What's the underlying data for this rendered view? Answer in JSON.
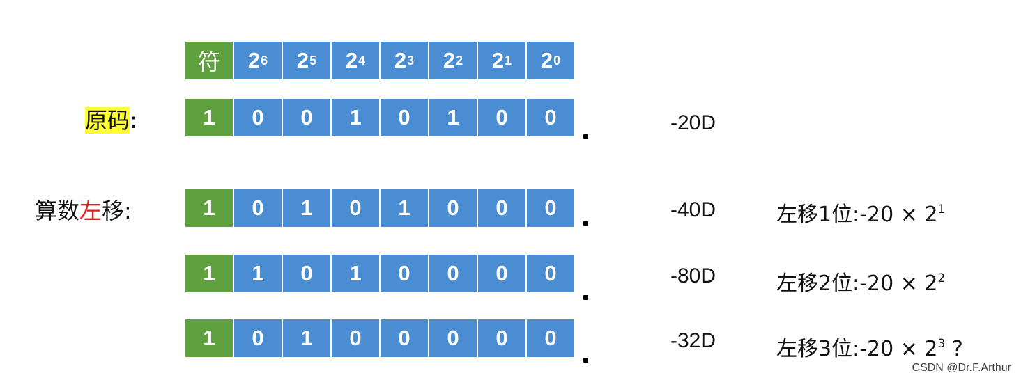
{
  "header": {
    "sign_label": "符",
    "powers": [
      {
        "base": "2",
        "exp": "6"
      },
      {
        "base": "2",
        "exp": "5"
      },
      {
        "base": "2",
        "exp": "4"
      },
      {
        "base": "2",
        "exp": "3"
      },
      {
        "base": "2",
        "exp": "2"
      },
      {
        "base": "2",
        "exp": "1"
      },
      {
        "base": "2",
        "exp": "0"
      }
    ]
  },
  "labels": {
    "original_code": "原码",
    "original_colon": ":",
    "shift_prefix": "算数",
    "shift_dir": "左",
    "shift_suffix": "移:"
  },
  "rows": [
    {
      "bits": [
        "1",
        "0",
        "0",
        "1",
        "0",
        "1",
        "0",
        "0"
      ],
      "value": "-20D",
      "note": null
    },
    {
      "bits": [
        "1",
        "0",
        "1",
        "0",
        "1",
        "0",
        "0",
        "0"
      ],
      "value": "-40D",
      "note": {
        "text": "左移1位:-20 × 2",
        "exp": "1",
        "suffix": ""
      }
    },
    {
      "bits": [
        "1",
        "1",
        "0",
        "1",
        "0",
        "0",
        "0",
        "0"
      ],
      "value": "-80D",
      "note": {
        "text": "左移2位:-20 × 2",
        "exp": "2",
        "suffix": ""
      }
    },
    {
      "bits": [
        "1",
        "0",
        "1",
        "0",
        "0",
        "0",
        "0",
        "0"
      ],
      "value": "-32D",
      "note": {
        "text": "左移3位:-20 × 2",
        "exp": "3",
        "suffix": " ?"
      }
    }
  ],
  "colors": {
    "sign": "#60a13f",
    "bit": "#4b8dd3",
    "highlight": "#ffff33",
    "error": "#e01e1e"
  },
  "watermark": "CSDN @Dr.F.Arthur"
}
